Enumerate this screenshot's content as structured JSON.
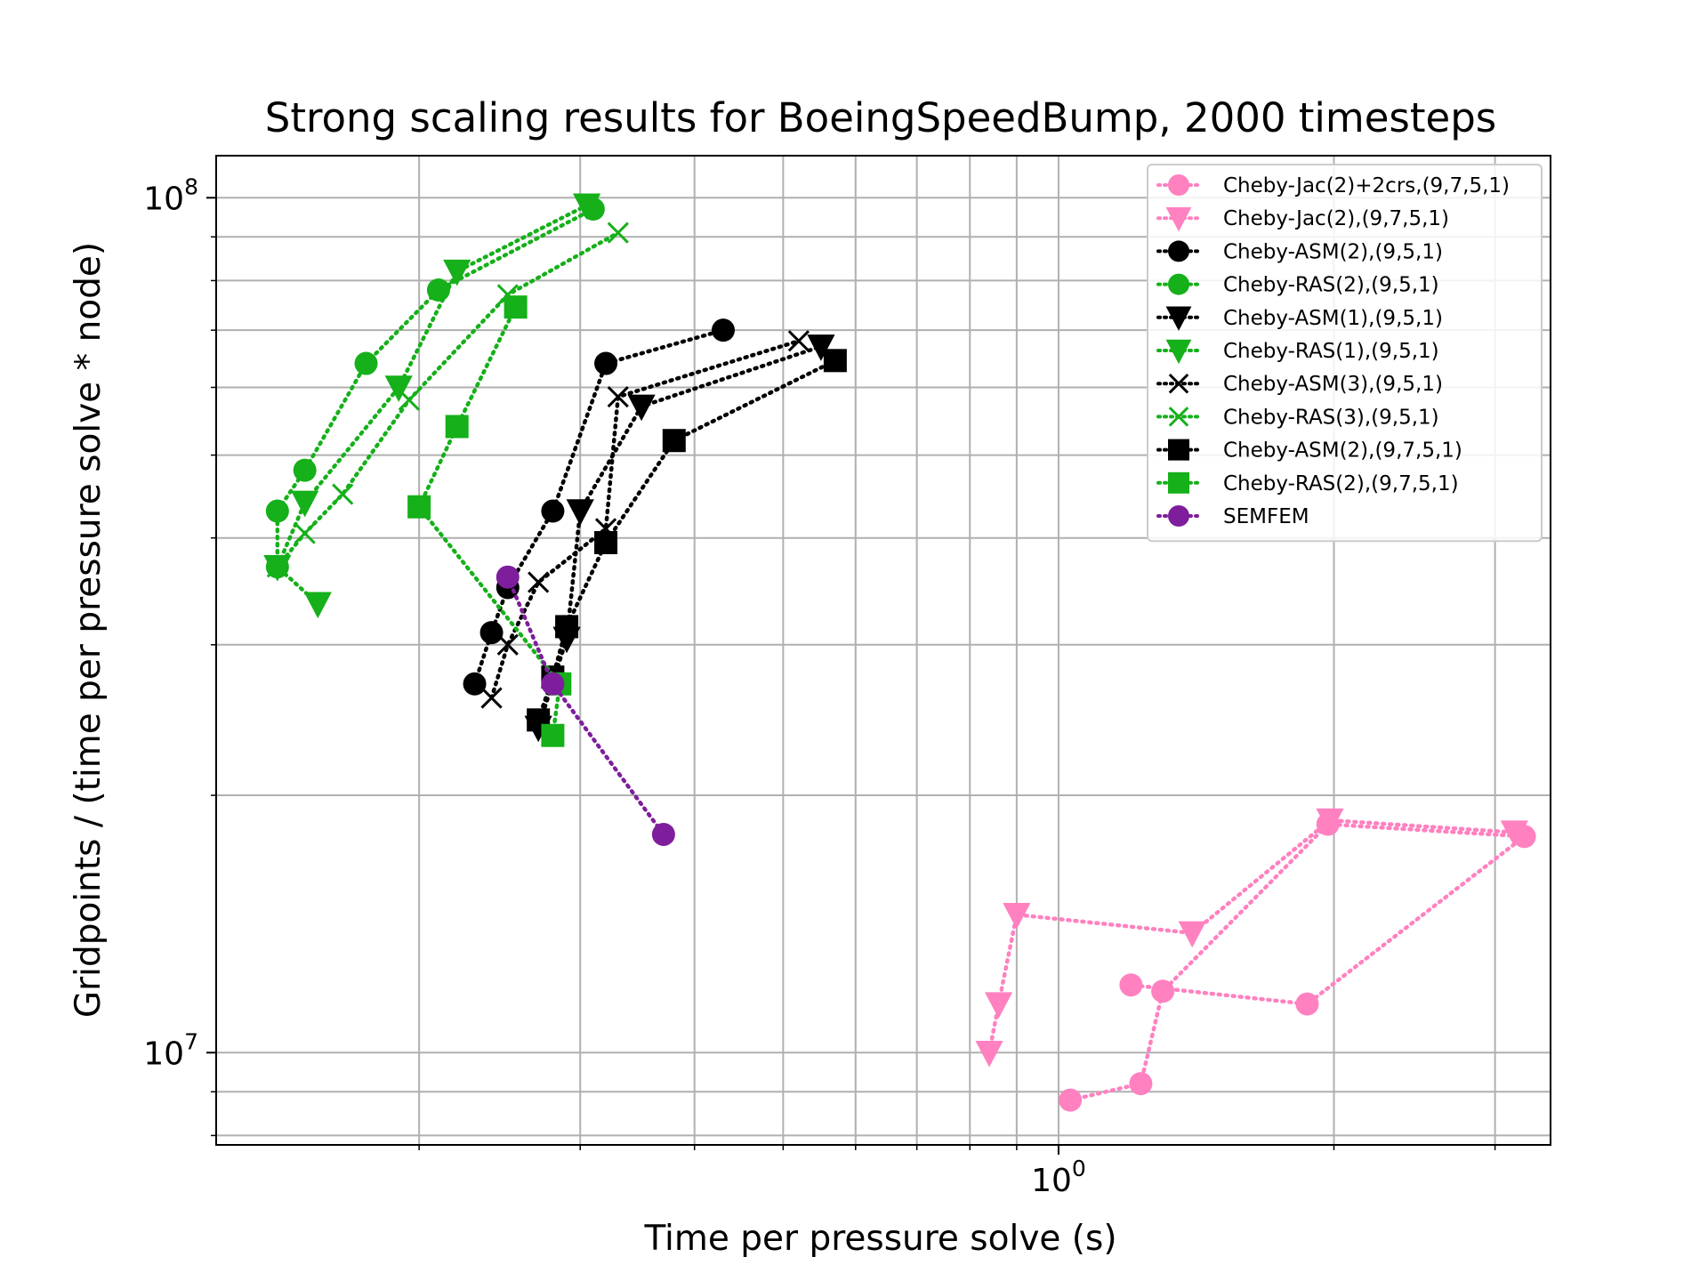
{
  "chart_data": {
    "type": "scatter",
    "title": "Strong scaling results for BoeingSpeedBump, 2000 timesteps",
    "xlabel": "Time per pressure solve (s)",
    "ylabel": "Gridpoints / (time per pressure solve * node)",
    "xscale": "log",
    "yscale": "log",
    "xlim": [
      0.12,
      3.45
    ],
    "ylim": [
      7800000,
      112000000
    ],
    "grid": true,
    "legend_position": "top-right",
    "x_major_ticks": [
      {
        "value": 1,
        "label": "10^0"
      }
    ],
    "y_major_ticks": [
      {
        "value": 10000000,
        "label": "10^7"
      },
      {
        "value": 100000000,
        "label": "10^8"
      }
    ],
    "series": [
      {
        "name": "Cheby-Jac(2)+2crs,(9,7,5,1)",
        "color": "#ff81c0",
        "marker": "circle",
        "line": "dotted",
        "x": [
          1.03,
          1.23,
          1.3,
          1.97,
          3.23,
          1.87,
          1.2
        ],
        "y": [
          8800000,
          9200000,
          11800000,
          18500000,
          17900000,
          11400000,
          12000000
        ]
      },
      {
        "name": "Cheby-Jac(2),(9,7,5,1)",
        "color": "#ff81c0",
        "marker": "triangle-down",
        "line": "dotted",
        "x": [
          0.84,
          0.86,
          0.9,
          1.4,
          1.98,
          3.15
        ],
        "y": [
          10000000,
          11400000,
          14500000,
          13800000,
          18700000,
          18100000
        ]
      },
      {
        "name": "Cheby-ASM(2),(9,5,1)",
        "color": "#000000",
        "marker": "circle",
        "line": "dotted",
        "x": [
          0.23,
          0.24,
          0.25,
          0.28,
          0.32,
          0.43
        ],
        "y": [
          27000000,
          31000000,
          35000000,
          43000000,
          64000000,
          70000000
        ]
      },
      {
        "name": "Cheby-RAS(2),(9,5,1)",
        "color": "#15b01a",
        "marker": "circle",
        "line": "dotted",
        "x": [
          0.14,
          0.14,
          0.15,
          0.175,
          0.21,
          0.31
        ],
        "y": [
          37000000,
          43000000,
          48000000,
          64000000,
          78000000,
          97000000
        ]
      },
      {
        "name": "Cheby-ASM(1),(9,5,1)",
        "color": "#000000",
        "marker": "triangle-down",
        "line": "dotted",
        "x": [
          0.27,
          0.29,
          0.3,
          0.35,
          0.55
        ],
        "y": [
          24000000,
          30500000,
          43000000,
          57000000,
          67000000
        ]
      },
      {
        "name": "Cheby-RAS(1),(9,5,1)",
        "color": "#15b01a",
        "marker": "triangle-down",
        "line": "dotted",
        "x": [
          0.155,
          0.14,
          0.15,
          0.19,
          0.22,
          0.305
        ],
        "y": [
          33500000,
          37000000,
          44000000,
          60000000,
          82000000,
          98000000
        ]
      },
      {
        "name": "Cheby-ASM(3),(9,5,1)",
        "color": "#000000",
        "marker": "cross",
        "line": "dotted",
        "x": [
          0.24,
          0.25,
          0.27,
          0.32,
          0.33,
          0.52
        ],
        "y": [
          26000000,
          30000000,
          35500000,
          41000000,
          58500000,
          68000000
        ]
      },
      {
        "name": "Cheby-RAS(3),(9,5,1)",
        "color": "#15b01a",
        "marker": "cross",
        "line": "dotted",
        "x": [
          0.14,
          0.15,
          0.165,
          0.195,
          0.25,
          0.33
        ],
        "y": [
          37000000,
          40500000,
          45000000,
          58000000,
          77000000,
          91000000
        ]
      },
      {
        "name": "Cheby-ASM(2),(9,7,5,1)",
        "color": "#000000",
        "marker": "square",
        "line": "dotted",
        "x": [
          0.27,
          0.28,
          0.29,
          0.32,
          0.38,
          0.57
        ],
        "y": [
          24500000,
          27500000,
          31500000,
          39500000,
          52000000,
          64500000
        ]
      },
      {
        "name": "Cheby-RAS(2),(9,7,5,1)",
        "color": "#15b01a",
        "marker": "square",
        "line": "dotted",
        "x": [
          0.28,
          0.285,
          0.2,
          0.22,
          0.255
        ],
        "y": [
          23500000,
          27000000,
          43500000,
          54000000,
          74500000
        ]
      },
      {
        "name": "SEMFEM",
        "color": "#7e1e9c",
        "marker": "circle",
        "line": "dotted",
        "x": [
          0.25,
          0.28,
          0.37
        ],
        "y": [
          36000000,
          27000000,
          18000000
        ]
      }
    ]
  }
}
